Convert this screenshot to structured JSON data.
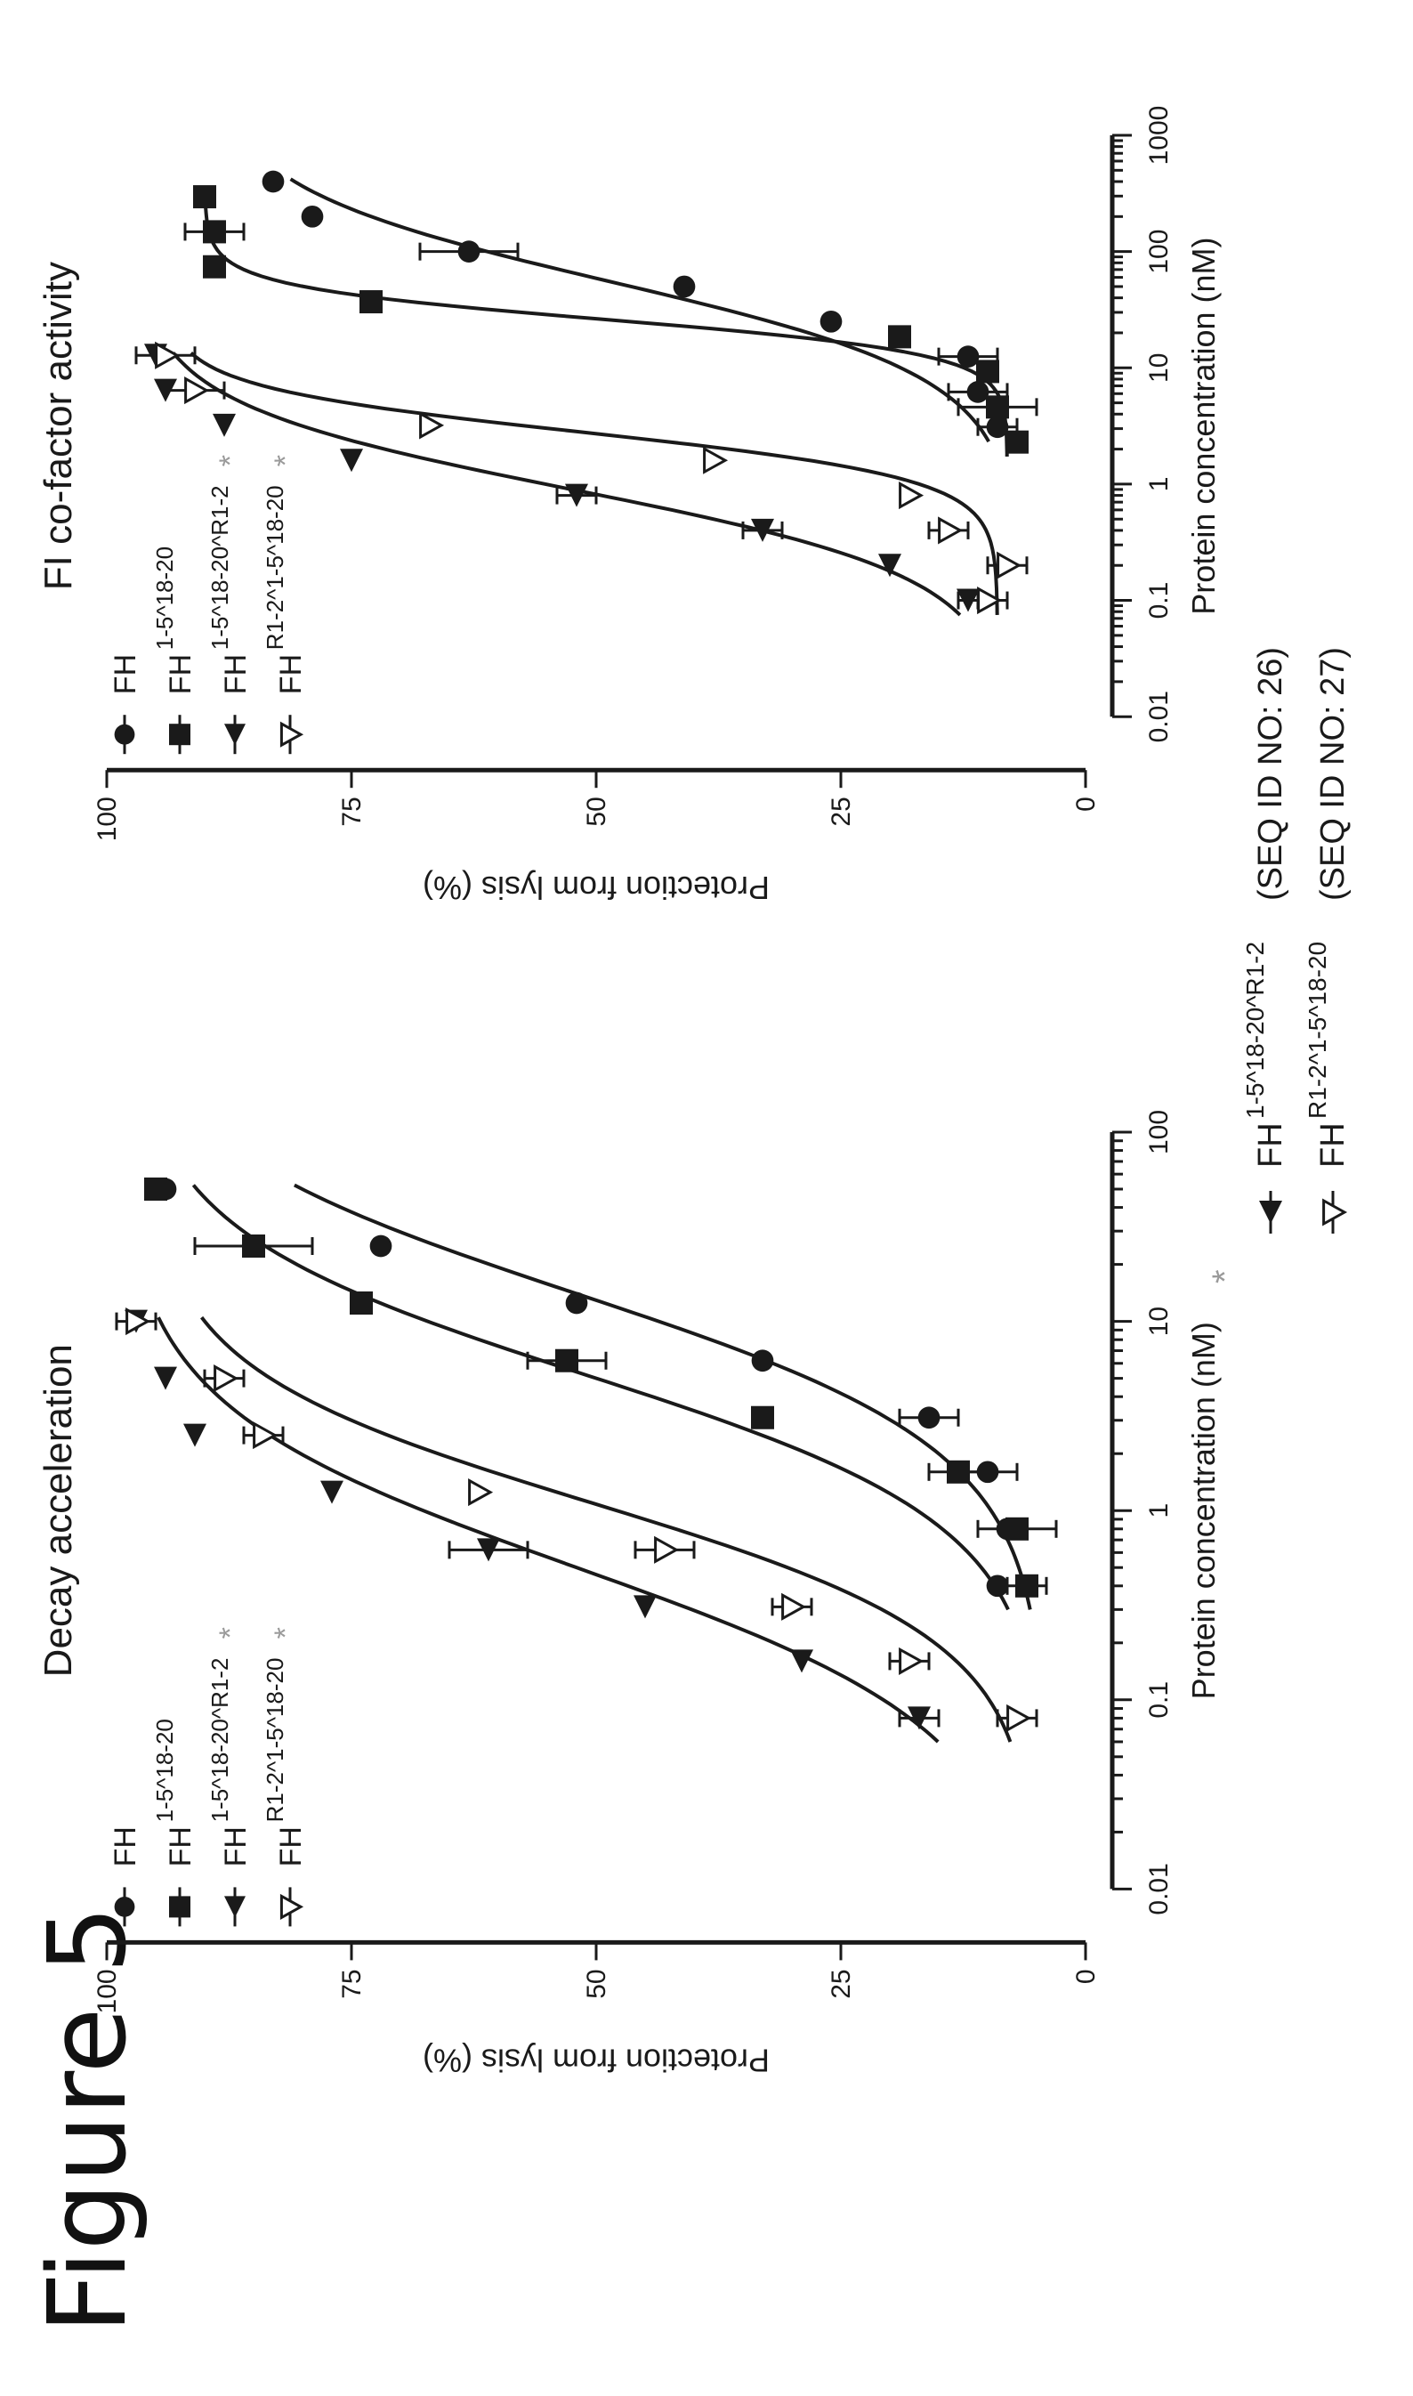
{
  "figure_label": "Figure 5",
  "colors": {
    "ink": "#1a1a1a",
    "asterisk": "#9a9a9a"
  },
  "asterisk": "*",
  "footnote": {
    "star": "*",
    "entries": [
      {
        "base": "FH",
        "sup": "1-5^18-20^R1-2",
        "seq": "(SEQ ID NO: 26)",
        "marker": "triangle-left-filled"
      },
      {
        "base": "FH",
        "sup": "R1-2^1-5^18-20",
        "seq": "(SEQ ID NO: 27)",
        "marker": "triangle-down-open"
      }
    ]
  },
  "chart_data": [
    {
      "type": "scatter",
      "title": "Decay acceleration",
      "xlabel": "Protein concentration (nM)",
      "ylabel": "Protection from lysis (%)",
      "xscale": "log",
      "xlim": [
        0.01,
        100
      ],
      "ylim": [
        0,
        100
      ],
      "xticks": [
        0.01,
        0.1,
        1,
        10,
        100
      ],
      "xtick_labels": [
        "0.01",
        "0.1",
        "1",
        "10",
        "100"
      ],
      "yticks": [
        0,
        25,
        50,
        75,
        100
      ],
      "ytick_labels": [
        "0",
        "25",
        "50",
        "75",
        "100"
      ],
      "legend_position": "top-left",
      "series": [
        {
          "name": "FH",
          "sup": "",
          "star": false,
          "marker": "circle-filled",
          "x": [
            0.4,
            0.8,
            1.6,
            3.1,
            6.2,
            12.5,
            25,
            50
          ],
          "y": [
            9,
            8,
            10,
            16,
            33,
            52,
            72,
            94
          ],
          "err": [
            0,
            0,
            3,
            3,
            0,
            0,
            0,
            0
          ]
        },
        {
          "name": "FH",
          "sup": "1-5^18-20",
          "star": false,
          "marker": "square-filled",
          "x": [
            0.4,
            0.8,
            1.6,
            3.1,
            6.2,
            12.5,
            25,
            50
          ],
          "y": [
            6,
            7,
            13,
            33,
            53,
            74,
            85,
            95
          ],
          "err": [
            2,
            4,
            3,
            0,
            4,
            0,
            6,
            0
          ]
        },
        {
          "name": "FH",
          "sup": "1-5^18-20^R1-2",
          "star": true,
          "marker": "triangle-left-filled",
          "x": [
            0.08,
            0.16,
            0.31,
            0.62,
            1.25,
            2.5,
            5,
            10
          ],
          "y": [
            17,
            29,
            45,
            61,
            77,
            91,
            94,
            97
          ],
          "err": [
            2,
            0,
            0,
            4,
            0,
            0,
            0,
            0
          ]
        },
        {
          "name": "FH",
          "sup": "R1-2^1-5^18-20",
          "star": true,
          "marker": "triangle-down-open",
          "x": [
            0.08,
            0.16,
            0.31,
            0.62,
            1.25,
            2.5,
            5,
            10
          ],
          "y": [
            7,
            18,
            30,
            43,
            62,
            84,
            88,
            97
          ],
          "err": [
            2,
            2,
            2,
            3,
            0,
            2,
            2,
            2
          ]
        }
      ]
    },
    {
      "type": "scatter",
      "title": "FI co-factor activity",
      "xlabel": "Protein concentration (nM)",
      "ylabel": "Protection from lysis (%)",
      "xscale": "log",
      "xlim": [
        0.01,
        1000
      ],
      "ylim": [
        0,
        100
      ],
      "xticks": [
        0.01,
        0.1,
        1,
        10,
        100,
        1000
      ],
      "xtick_labels": [
        "0.01",
        "0.1",
        "1",
        "10",
        "100",
        "1000"
      ],
      "yticks": [
        0,
        25,
        50,
        75,
        100
      ],
      "ytick_labels": [
        "0",
        "25",
        "50",
        "75",
        "100"
      ],
      "legend_position": "top-left",
      "series": [
        {
          "name": "FH",
          "sup": "",
          "star": false,
          "marker": "circle-filled",
          "x": [
            3.1,
            6.2,
            12.5,
            25,
            50,
            100,
            200,
            400
          ],
          "y": [
            9,
            11,
            12,
            26,
            41,
            63,
            79,
            83
          ],
          "err": [
            2,
            3,
            3,
            0,
            0,
            5,
            0,
            0
          ]
        },
        {
          "name": "FH",
          "sup": "1-5^18-20",
          "star": false,
          "marker": "square-filled",
          "x": [
            2.3,
            4.6,
            9.3,
            18.5,
            37,
            74,
            148,
            296
          ],
          "y": [
            7,
            9,
            10,
            19,
            73,
            89,
            89,
            90
          ],
          "err": [
            0,
            4,
            0,
            0,
            0,
            0,
            3,
            0
          ]
        },
        {
          "name": "FH",
          "sup": "1-5^18-20^R1-2",
          "star": true,
          "marker": "triangle-left-filled",
          "x": [
            0.1,
            0.2,
            0.4,
            0.8,
            1.6,
            3.2,
            6.4,
            12.8
          ],
          "y": [
            12,
            20,
            33,
            52,
            75,
            88,
            94,
            95
          ],
          "err": [
            1,
            0,
            2,
            2,
            0,
            0,
            0,
            0
          ]
        },
        {
          "name": "FH",
          "sup": "R1-2^1-5^18-20",
          "star": true,
          "marker": "triangle-down-open",
          "x": [
            0.1,
            0.2,
            0.4,
            0.8,
            1.6,
            3.2,
            6.4,
            12.8
          ],
          "y": [
            10,
            8,
            14,
            18,
            38,
            67,
            91,
            94
          ],
          "err": [
            2,
            2,
            2,
            0,
            0,
            0,
            3,
            3
          ]
        }
      ]
    }
  ]
}
